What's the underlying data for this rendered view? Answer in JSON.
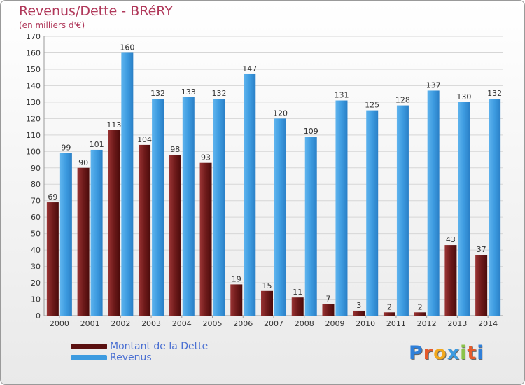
{
  "header": {
    "title": "Revenus/Dette - BRéRY",
    "subtitle": "(en milliers d'€)"
  },
  "colors": {
    "debt": "#7a1f1f",
    "revenue": "#3d9be0",
    "title": "#b0385a",
    "legend_text": "#4a6fd2"
  },
  "legend": {
    "items": [
      {
        "label": "Montant de la Dette",
        "color": "#5a1010"
      },
      {
        "label": "Revenus",
        "color": "#3d9be0"
      }
    ]
  },
  "logo": {
    "letters": [
      "P",
      "r",
      "o",
      "x",
      "i",
      "t",
      "i"
    ],
    "colors": [
      "#2f7fd8",
      "#e55a2b",
      "#f2a81d",
      "#3d9be0",
      "#8bc34a",
      "#e55a2b",
      "#2f7fd8"
    ]
  },
  "chart_data": {
    "type": "bar",
    "title": "Revenus/Dette - BRéRY",
    "subtitle": "(en milliers d'€)",
    "categories": [
      "2000",
      "2001",
      "2002",
      "2003",
      "2004",
      "2005",
      "2006",
      "2007",
      "2008",
      "2009",
      "2010",
      "2011",
      "2012",
      "2013",
      "2014"
    ],
    "series": [
      {
        "name": "Montant de la Dette",
        "values": [
          69,
          90,
          113,
          104,
          98,
          93,
          19,
          15,
          11,
          7,
          3,
          2,
          2,
          43,
          37
        ]
      },
      {
        "name": "Revenus",
        "values": [
          99,
          101,
          160,
          132,
          133,
          132,
          147,
          120,
          109,
          131,
          125,
          128,
          137,
          130,
          132
        ]
      }
    ],
    "ylim": [
      0,
      170
    ],
    "ytick_step": 10,
    "grid": true,
    "legend_position": "bottom-left"
  }
}
